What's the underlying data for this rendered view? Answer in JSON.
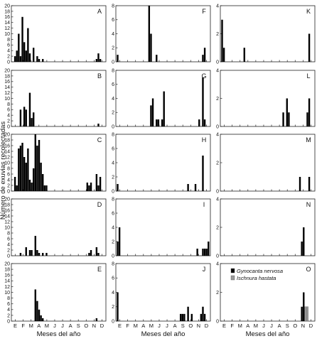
{
  "chart_data": {
    "type": "bar",
    "layout": "5x3 panel grid",
    "ylabel": "Número de exuvias recolectadas",
    "xlabel": "Meses del año",
    "month_ticks": [
      "E",
      "F",
      "M",
      "A",
      "M",
      "J",
      "J",
      "A",
      "S",
      "O",
      "N",
      "D"
    ],
    "x_range_weeks": [
      0,
      49
    ],
    "legend": {
      "panel": "O",
      "placement": "top-right",
      "entries": [
        {
          "name": "Gynocanta nervosa",
          "color": "#000000"
        },
        {
          "name": "Ischnura hastata",
          "color": "#9a9a9a"
        }
      ]
    },
    "panels": [
      {
        "letter": "A",
        "ylim": [
          0,
          20
        ],
        "yticks": [
          0,
          2,
          4,
          6,
          8,
          10,
          12,
          14,
          16,
          18,
          20
        ],
        "bars": [
          {
            "w": 1,
            "v": 2
          },
          {
            "w": 2,
            "v": 4
          },
          {
            "w": 3,
            "v": 10
          },
          {
            "w": 4,
            "v": 2
          },
          {
            "w": 5,
            "v": 16
          },
          {
            "w": 6,
            "v": 7
          },
          {
            "w": 7,
            "v": 4
          },
          {
            "w": 8,
            "v": 12
          },
          {
            "w": 9,
            "v": 3
          },
          {
            "w": 11,
            "v": 5
          },
          {
            "w": 13,
            "v": 2
          },
          {
            "w": 14,
            "v": 1
          },
          {
            "w": 16,
            "v": 1
          },
          {
            "w": 45,
            "v": 1
          },
          {
            "w": 46,
            "v": 3
          },
          {
            "w": 47,
            "v": 1
          }
        ]
      },
      {
        "letter": "B",
        "ylim": [
          0,
          20
        ],
        "yticks": [
          0,
          2,
          4,
          6,
          8,
          10,
          12,
          14,
          16,
          18,
          20
        ],
        "bars": [
          {
            "w": 4,
            "v": 6
          },
          {
            "w": 6,
            "v": 7
          },
          {
            "w": 7,
            "v": 6
          },
          {
            "w": 9,
            "v": 12
          },
          {
            "w": 10,
            "v": 3
          },
          {
            "w": 11,
            "v": 5
          },
          {
            "w": 46,
            "v": 1
          }
        ]
      },
      {
        "letter": "C",
        "ylim": [
          0,
          20
        ],
        "yticks": [
          0,
          2,
          4,
          6,
          8,
          10,
          12,
          14,
          16,
          18,
          20
        ],
        "bars": [
          {
            "w": 1,
            "v": 5
          },
          {
            "w": 2,
            "v": 2
          },
          {
            "w": 3,
            "v": 15
          },
          {
            "w": 4,
            "v": 16
          },
          {
            "w": 5,
            "v": 17
          },
          {
            "w": 6,
            "v": 12
          },
          {
            "w": 7,
            "v": 10
          },
          {
            "w": 8,
            "v": 15
          },
          {
            "w": 9,
            "v": 4
          },
          {
            "w": 10,
            "v": 3
          },
          {
            "w": 11,
            "v": 8
          },
          {
            "w": 12,
            "v": 20
          },
          {
            "w": 13,
            "v": 16
          },
          {
            "w": 14,
            "v": 18
          },
          {
            "w": 15,
            "v": 10
          },
          {
            "w": 16,
            "v": 6
          },
          {
            "w": 17,
            "v": 2
          },
          {
            "w": 18,
            "v": 2
          },
          {
            "w": 40,
            "v": 3
          },
          {
            "w": 41,
            "v": 2
          },
          {
            "w": 42,
            "v": 3
          },
          {
            "w": 45,
            "v": 6
          },
          {
            "w": 46,
            "v": 2
          },
          {
            "w": 47,
            "v": 5
          }
        ]
      },
      {
        "letter": "D",
        "ylim": [
          0,
          20
        ],
        "yticks": [
          0,
          2,
          4,
          6,
          8,
          10,
          12,
          14,
          16,
          18,
          20
        ],
        "bars": [
          {
            "w": 4,
            "v": 1
          },
          {
            "w": 7,
            "v": 3
          },
          {
            "w": 9,
            "v": 2
          },
          {
            "w": 10,
            "v": 2
          },
          {
            "w": 12,
            "v": 7
          },
          {
            "w": 13,
            "v": 2
          },
          {
            "w": 14,
            "v": 1
          },
          {
            "w": 16,
            "v": 1
          },
          {
            "w": 18,
            "v": 1
          },
          {
            "w": 41,
            "v": 1
          },
          {
            "w": 42,
            "v": 2
          },
          {
            "w": 45,
            "v": 3
          },
          {
            "w": 46,
            "v": 1
          }
        ]
      },
      {
        "letter": "E",
        "ylim": [
          0,
          20
        ],
        "yticks": [
          0,
          2,
          4,
          6,
          8,
          10,
          12,
          14,
          16,
          18,
          20
        ],
        "bars": [
          {
            "w": 12,
            "v": 11
          },
          {
            "w": 13,
            "v": 7
          },
          {
            "w": 14,
            "v": 4
          },
          {
            "w": 15,
            "v": 2
          },
          {
            "w": 16,
            "v": 1
          },
          {
            "w": 45,
            "v": 1
          }
        ]
      },
      {
        "letter": "F",
        "ylim": [
          0,
          8
        ],
        "yticks": [
          0,
          2,
          4,
          6,
          8
        ],
        "bars": [
          {
            "w": 0,
            "v": 1
          },
          {
            "w": 17,
            "v": 8
          },
          {
            "w": 18,
            "v": 4
          },
          {
            "w": 21,
            "v": 1
          },
          {
            "w": 46,
            "v": 1
          },
          {
            "w": 47,
            "v": 2
          }
        ]
      },
      {
        "letter": "G",
        "ylim": [
          0,
          8
        ],
        "yticks": [
          0,
          2,
          4,
          6,
          8
        ],
        "bars": [
          {
            "w": 18,
            "v": 3
          },
          {
            "w": 19,
            "v": 4
          },
          {
            "w": 21,
            "v": 1
          },
          {
            "w": 22,
            "v": 1
          },
          {
            "w": 24,
            "v": 1
          },
          {
            "w": 25,
            "v": 5
          },
          {
            "w": 44,
            "v": 1
          },
          {
            "w": 46,
            "v": 7
          },
          {
            "w": 47,
            "v": 1
          }
        ]
      },
      {
        "letter": "H",
        "ylim": [
          0,
          8
        ],
        "yticks": [
          0,
          2,
          4,
          6,
          8
        ],
        "bars": [
          {
            "w": 0,
            "v": 1
          },
          {
            "w": 38,
            "v": 1
          },
          {
            "w": 42,
            "v": 1
          },
          {
            "w": 46,
            "v": 5
          }
        ]
      },
      {
        "letter": "I",
        "ylim": [
          0,
          8
        ],
        "yticks": [
          0,
          2,
          4,
          6,
          8
        ],
        "bars": [
          {
            "w": 0,
            "v": 2
          },
          {
            "w": 1,
            "v": 4
          },
          {
            "w": 43,
            "v": 1
          },
          {
            "w": 46,
            "v": 1
          },
          {
            "w": 47,
            "v": 1
          },
          {
            "w": 48,
            "v": 1
          },
          {
            "w": 49,
            "v": 2
          }
        ]
      },
      {
        "letter": "J",
        "ylim": [
          0,
          8
        ],
        "yticks": [
          0,
          2,
          4,
          6,
          8
        ],
        "bars": [
          {
            "w": 0,
            "v": 4
          },
          {
            "w": 34,
            "v": 1
          },
          {
            "w": 35,
            "v": 1
          },
          {
            "w": 36,
            "v": 1
          },
          {
            "w": 38,
            "v": 2
          },
          {
            "w": 40,
            "v": 1
          },
          {
            "w": 45,
            "v": 1
          },
          {
            "w": 46,
            "v": 2
          },
          {
            "w": 47,
            "v": 1
          }
        ]
      },
      {
        "letter": "K",
        "ylim": [
          0,
          4
        ],
        "yticks": [
          0,
          2,
          4
        ],
        "bars": [
          {
            "w": 0,
            "v": 3
          },
          {
            "w": 1,
            "v": 1
          },
          {
            "w": 12,
            "v": 1
          },
          {
            "w": 47,
            "v": 2
          }
        ]
      },
      {
        "letter": "L",
        "ylim": [
          0,
          4
        ],
        "yticks": [
          0,
          2,
          4
        ],
        "bars": [
          {
            "w": 33,
            "v": 1
          },
          {
            "w": 35,
            "v": 2
          },
          {
            "w": 36,
            "v": 1
          },
          {
            "w": 46,
            "v": 1
          },
          {
            "w": 47,
            "v": 2
          }
        ]
      },
      {
        "letter": "M",
        "ylim": [
          0,
          4
        ],
        "yticks": [
          0,
          2,
          4
        ],
        "bars": [
          {
            "w": 42,
            "v": 1
          },
          {
            "w": 47,
            "v": 1
          }
        ]
      },
      {
        "letter": "N",
        "ylim": [
          0,
          4
        ],
        "yticks": [
          0,
          2,
          4
        ],
        "bars": [
          {
            "w": 43,
            "v": 1
          },
          {
            "w": 44,
            "v": 2
          }
        ]
      },
      {
        "letter": "O",
        "ylim": [
          0,
          4
        ],
        "yticks": [
          0,
          2,
          4
        ],
        "bars": [
          {
            "w": 43,
            "v": 1
          },
          {
            "w": 44,
            "v": 2
          },
          {
            "w": 45,
            "v": 1,
            "series": 1
          },
          {
            "w": 46,
            "v": 1,
            "series": 1
          }
        ]
      }
    ]
  }
}
